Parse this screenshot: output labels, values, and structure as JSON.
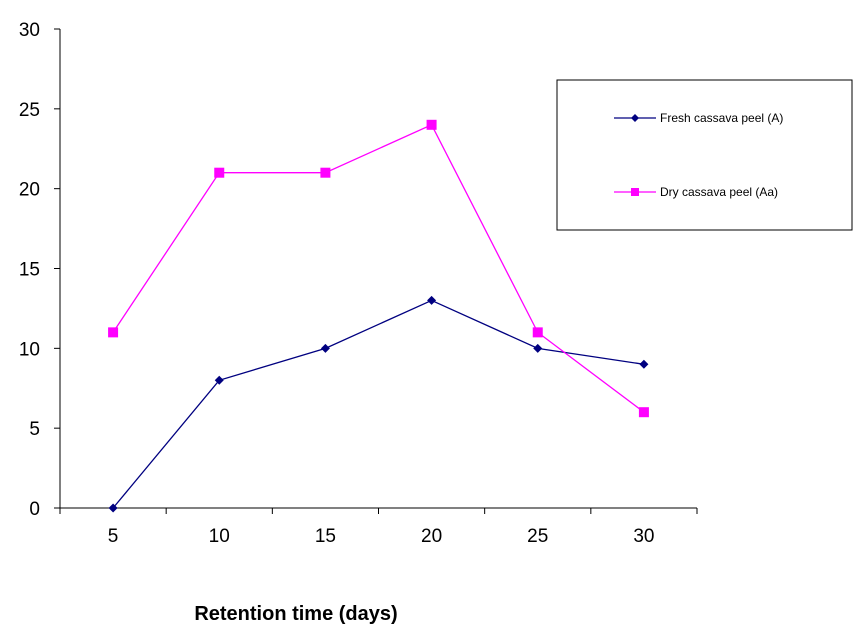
{
  "chart_data": {
    "type": "line",
    "categories": [
      "5",
      "10",
      "15",
      "20",
      "25",
      "30"
    ],
    "series": [
      {
        "name": "Fresh cassava peel (A)",
        "values": [
          0,
          8,
          10,
          13,
          10,
          9
        ],
        "color": "#000080",
        "marker": "diamond"
      },
      {
        "name": "Dry cassava peel (Aa)",
        "values": [
          11,
          21,
          21,
          24,
          11,
          6
        ],
        "color": "#ff00ff",
        "marker": "square"
      }
    ],
    "title": "",
    "xlabel": "Retention time (days)",
    "ylabel": "",
    "ylim": [
      0,
      30
    ],
    "yticks": [
      "0",
      "5",
      "10",
      "15",
      "20",
      "25",
      "30"
    ],
    "grid": false,
    "legend_position": "top-right"
  }
}
